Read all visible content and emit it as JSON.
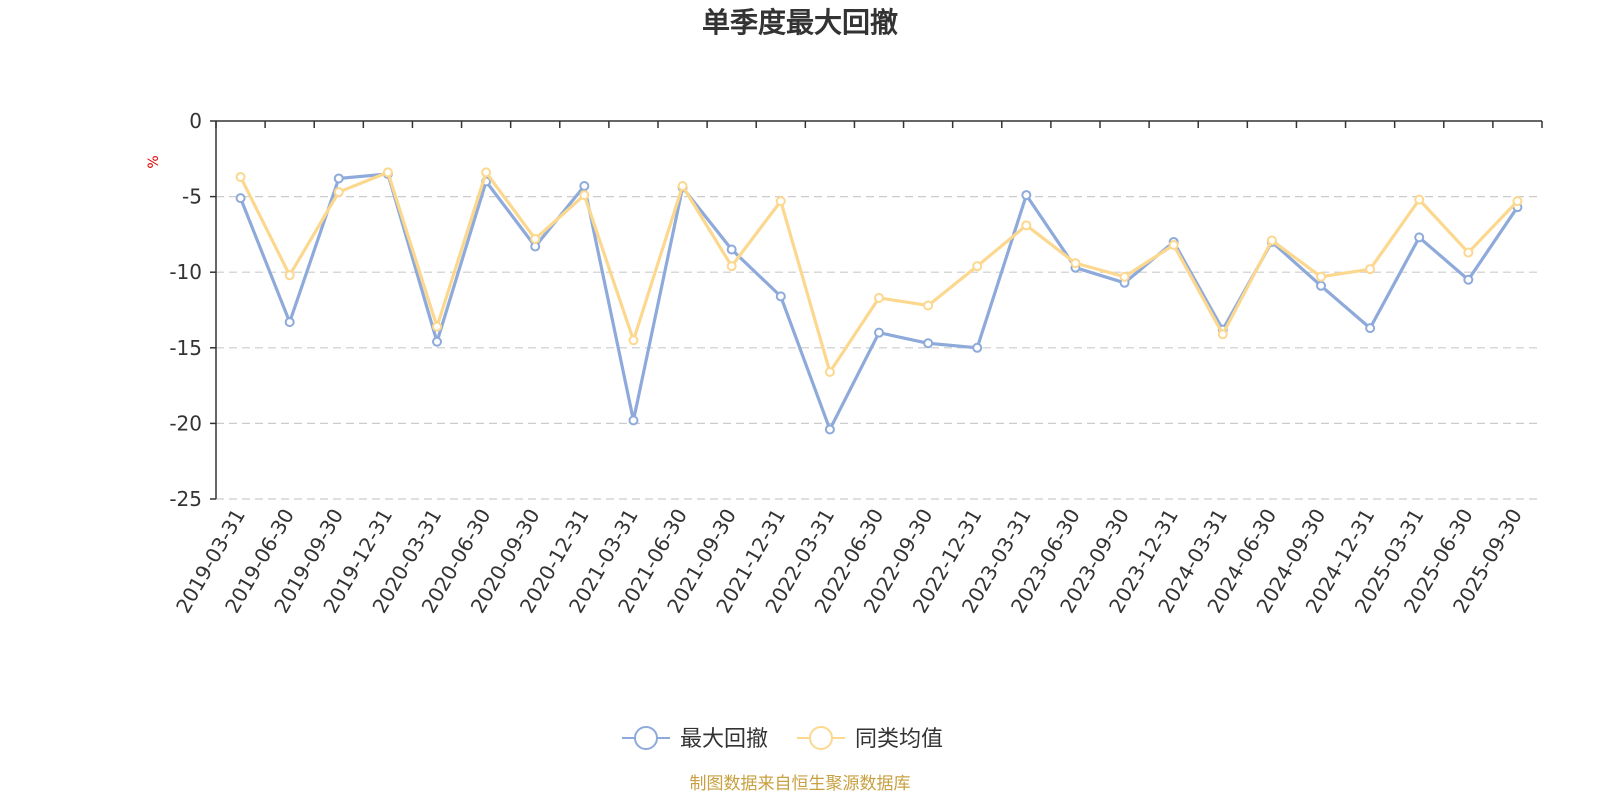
{
  "chart_data": {
    "type": "line",
    "title": "单季度最大回撤",
    "ylabel": "%",
    "xlabel": "",
    "ylim": [
      -25,
      0
    ],
    "yticks": [
      0,
      -5,
      -10,
      -15,
      -20,
      -25
    ],
    "grid": "horizontal-dashed",
    "legend_position": "bottom-center",
    "categories": [
      "2019-03-31",
      "2019-06-30",
      "2019-09-30",
      "2019-12-31",
      "2020-03-31",
      "2020-06-30",
      "2020-09-30",
      "2020-12-31",
      "2021-03-31",
      "2021-06-30",
      "2021-09-30",
      "2021-12-31",
      "2022-03-31",
      "2022-06-30",
      "2022-09-30",
      "2022-12-31",
      "2023-03-31",
      "2023-06-30",
      "2023-09-30",
      "2023-12-31",
      "2024-03-31",
      "2024-06-30",
      "2024-09-30",
      "2024-12-31",
      "2025-03-31",
      "2025-06-30",
      "2025-09-30"
    ],
    "series": [
      {
        "name": "最大回撤",
        "color": "#8eaadb",
        "values": [
          -5.1,
          -13.3,
          -3.8,
          -3.5,
          -14.6,
          -4.0,
          -8.3,
          -4.3,
          -19.8,
          -4.4,
          -8.5,
          -11.6,
          -20.4,
          -14.0,
          -14.7,
          -15.0,
          -4.9,
          -9.7,
          -10.7,
          -8.0,
          -13.8,
          -8.0,
          -10.9,
          -13.7,
          -7.7,
          -10.5,
          -5.7
        ]
      },
      {
        "name": "同类均值",
        "color": "#fcd88f",
        "values": [
          -3.7,
          -10.2,
          -4.7,
          -3.4,
          -13.6,
          -3.4,
          -7.8,
          -4.9,
          -14.5,
          -4.3,
          -9.6,
          -5.3,
          -16.6,
          -11.7,
          -12.2,
          -9.6,
          -6.9,
          -9.4,
          -10.3,
          -8.2,
          -14.1,
          -7.9,
          -10.3,
          -9.8,
          -5.2,
          -8.7,
          -5.3
        ]
      }
    ]
  },
  "footer": "制图数据来自恒生聚源数据库"
}
